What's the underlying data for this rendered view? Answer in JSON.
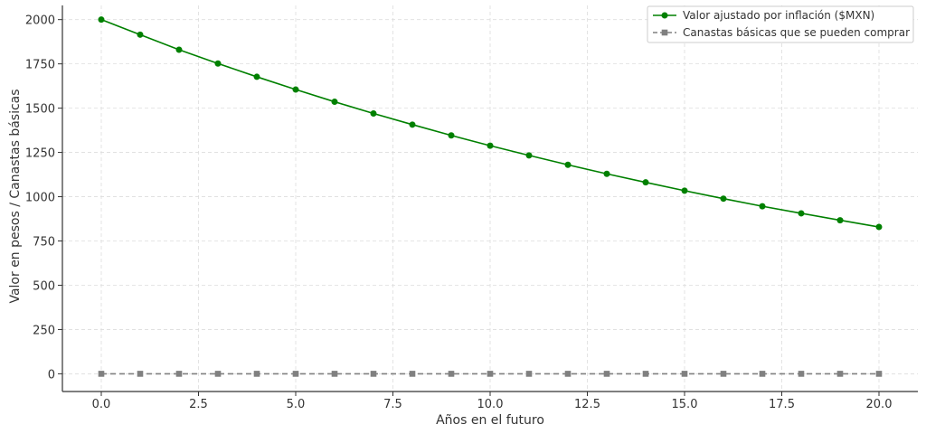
{
  "chart_data": {
    "type": "line",
    "xlabel": "Años en el futuro",
    "ylabel": "Valor en pesos / Canastas básicas",
    "xlim": [
      -1,
      21
    ],
    "ylim": [
      -100,
      2080
    ],
    "xticks": [
      0,
      2.5,
      5,
      7.5,
      10,
      12.5,
      15,
      17.5,
      20
    ],
    "xtick_labels": [
      "0.0",
      "2.5",
      "5.0",
      "7.5",
      "10.0",
      "12.5",
      "15.0",
      "17.5",
      "20.0"
    ],
    "yticks": [
      0,
      250,
      500,
      750,
      1000,
      1250,
      1500,
      1750,
      2000
    ],
    "ytick_labels": [
      "0",
      "250",
      "500",
      "750",
      "1000",
      "1250",
      "1500",
      "1750",
      "2000"
    ],
    "grid": true,
    "legend_position": "top-right",
    "x": [
      0,
      1,
      2,
      3,
      4,
      5,
      6,
      7,
      8,
      9,
      10,
      11,
      12,
      13,
      14,
      15,
      16,
      17,
      18,
      19,
      20
    ],
    "series": [
      {
        "name": "Valor ajustado por inflación ($MXN)",
        "color": "#008000",
        "line_style": "solid",
        "marker": "circle",
        "values": [
          2000,
          1915,
          1830,
          1752,
          1677,
          1605,
          1536,
          1470,
          1407,
          1346,
          1288,
          1233,
          1180,
          1129,
          1081,
          1034,
          989,
          946,
          906,
          867,
          829
        ]
      },
      {
        "name": "Canastas básicas que se pueden comprar",
        "color": "#808080",
        "line_style": "dashed",
        "marker": "square",
        "values": [
          0,
          0,
          0,
          0,
          0,
          0,
          0,
          0,
          0,
          0,
          0,
          0,
          0,
          0,
          0,
          0,
          0,
          0,
          0,
          0,
          0
        ]
      }
    ]
  }
}
